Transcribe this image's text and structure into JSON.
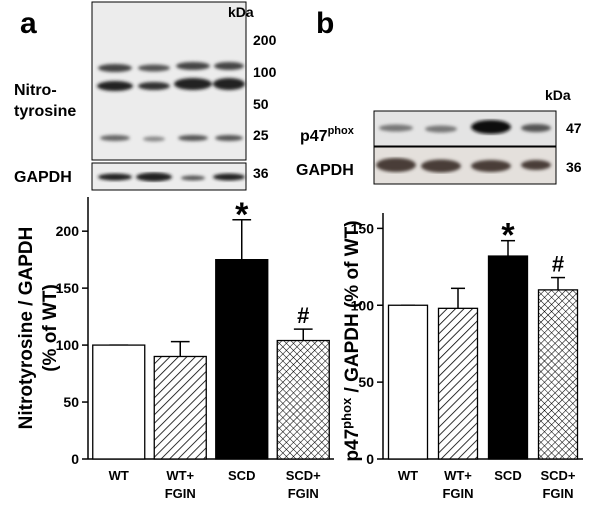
{
  "panels": [
    {
      "letter": "a",
      "blot": {
        "unit": "kDa",
        "label_lines": [
          "Nitro-",
          "tyrosine"
        ],
        "markers": [
          200,
          100,
          50,
          25
        ],
        "control": "GAPDH",
        "control_marker": 36
      }
    },
    {
      "letter": "b",
      "blot": {
        "unit": "kDa",
        "label": {
          "base": "p47",
          "sup": "phox"
        },
        "markers": [
          47
        ],
        "control": "GAPDH",
        "control_marker": 36
      }
    }
  ],
  "chart_data": [
    {
      "type": "bar",
      "ylabel": "Nitrotyrosine / GAPDH\n(% of WT)",
      "categories": [
        "WT",
        "WT+\nFGIN",
        "SCD",
        "SCD+\nFGIN"
      ],
      "values": [
        100,
        90,
        175,
        104
      ],
      "errors": [
        0,
        13,
        35,
        10
      ],
      "patterns": [
        "none",
        "diagonal",
        "solid",
        "crosshatch"
      ],
      "value_annotations": [
        null,
        null,
        "*",
        "#"
      ],
      "ylim": [
        0,
        230
      ],
      "yticks": [
        0,
        50,
        100,
        150,
        200
      ]
    },
    {
      "type": "bar",
      "ylabel": {
        "base": "p47",
        "sup": "phox",
        "rest": " / GAPDH (% of WT)"
      },
      "categories": [
        "WT",
        "WT+\nFGIN",
        "SCD",
        "SCD+\nFGIN"
      ],
      "values": [
        100,
        98,
        132,
        110
      ],
      "errors": [
        0,
        13,
        10,
        8
      ],
      "patterns": [
        "none",
        "diagonal",
        "solid",
        "crosshatch"
      ],
      "value_annotations": [
        null,
        null,
        "*",
        "#"
      ],
      "ylim": [
        0,
        160
      ],
      "yticks": [
        0,
        50,
        100,
        150
      ]
    }
  ]
}
